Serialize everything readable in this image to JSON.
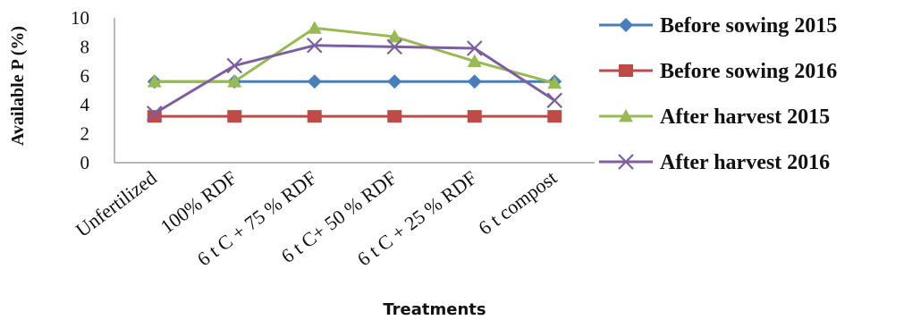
{
  "chart_data": {
    "type": "line",
    "ylabel": "Available P (%)",
    "xlabel": "Treatments",
    "ylim": [
      0,
      10
    ],
    "yticks": [
      0,
      2,
      4,
      6,
      8,
      10
    ],
    "categories": [
      "Unfertilized",
      "100% RDF",
      "6 t C + 75 % RDF",
      "6 t C+ 50 % RDF",
      "6 t C  + 25 % RDF",
      "6 t compost"
    ],
    "legend_position": "right",
    "grid": false,
    "series": [
      {
        "name": "Before sowing 2015",
        "values": [
          5.6,
          5.6,
          5.6,
          5.6,
          5.6,
          5.6
        ],
        "color": "#4a7ebb",
        "marker": "diamond"
      },
      {
        "name": "Before sowing 2016",
        "values": [
          3.2,
          3.2,
          3.2,
          3.2,
          3.2,
          3.2
        ],
        "color": "#be4b48",
        "marker": "square"
      },
      {
        "name": "After harvest  2015",
        "values": [
          5.6,
          5.6,
          9.3,
          8.7,
          7.0,
          5.5
        ],
        "color": "#98b954",
        "marker": "triangle"
      },
      {
        "name": "After harvest  2016",
        "values": [
          3.4,
          6.7,
          8.1,
          8.0,
          7.9,
          4.3
        ],
        "color": "#7d5fa0",
        "marker": "x"
      }
    ]
  }
}
